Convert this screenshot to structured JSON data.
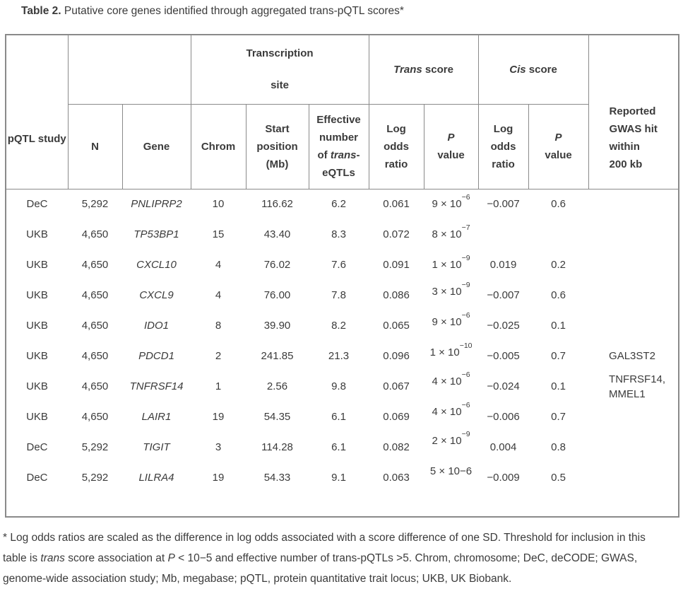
{
  "caption": {
    "label": "Table 2.",
    "text": " Putative core genes identified through aggregated trans-pQTL scores*"
  },
  "table": {
    "groups": {
      "transcription_site": [
        "Transcription",
        "site"
      ],
      "trans_score_italic": "Trans",
      "trans_score_rest": " score",
      "cis_score_italic": "Cis",
      "cis_score_rest": " score"
    },
    "columns": {
      "pqtl_study": "pQTL study",
      "n": "N",
      "gene": "Gene",
      "chrom": "Chrom",
      "start_position": [
        "Start",
        "position",
        "(Mb)"
      ],
      "effective": {
        "top": [
          "Effective",
          "number"
        ],
        "of": "of ",
        "trans": "trans",
        "hyphen": "-",
        "bottom": "eQTLs"
      },
      "trans_log_odds": [
        "Log",
        "odds",
        "ratio"
      ],
      "trans_p_italic": "P",
      "trans_p_rest": "value",
      "cis_log_odds": [
        "Log",
        "odds",
        "ratio"
      ],
      "cis_p_italic": "P",
      "cis_p_rest": "value",
      "gwas": [
        "Reported",
        "GWAS hit",
        "within",
        "200 kb"
      ]
    },
    "rows": [
      {
        "study": "DeC",
        "n": "5,292",
        "gene": "PNLIPRP2",
        "chrom": "10",
        "start": "116.62",
        "eff": "6.2",
        "trans_lor": "0.061",
        "trans_p_base": "9 × 10",
        "trans_p_sup": "−6",
        "cis_lor": "−0.007",
        "cis_p": "0.6",
        "gwas": ""
      },
      {
        "study": "UKB",
        "n": "4,650",
        "gene": "TP53BP1",
        "chrom": "15",
        "start": "43.40",
        "eff": "8.3",
        "trans_lor": "0.072",
        "trans_p_base": "8 × 10",
        "trans_p_sup": "−7",
        "cis_lor": "",
        "cis_p": "",
        "gwas": ""
      },
      {
        "study": "UKB",
        "n": "4,650",
        "gene": "CXCL10",
        "chrom": "4",
        "start": "76.02",
        "eff": "7.6",
        "trans_lor": "0.091",
        "trans_p_base": "1 × 10",
        "trans_p_sup": "−9",
        "cis_lor": "0.019",
        "cis_p": "0.2",
        "gwas": ""
      },
      {
        "study": "UKB",
        "n": "4,650",
        "gene": "CXCL9",
        "chrom": "4",
        "start": "76.00",
        "eff": "7.8",
        "trans_lor": "0.086",
        "trans_p_base": "3 × 10",
        "trans_p_sup": "−9",
        "cis_lor": "−0.007",
        "cis_p": "0.6",
        "gwas": ""
      },
      {
        "study": "UKB",
        "n": "4,650",
        "gene": "IDO1",
        "chrom": "8",
        "start": "39.90",
        "eff": "8.2",
        "trans_lor": "0.065",
        "trans_p_base": "9 × 10",
        "trans_p_sup": "−6",
        "cis_lor": "−0.025",
        "cis_p": "0.1",
        "gwas": ""
      },
      {
        "study": "UKB",
        "n": "4,650",
        "gene": "PDCD1",
        "chrom": "2",
        "start": "241.85",
        "eff": "21.3",
        "trans_lor": "0.096",
        "trans_p_base": "1 × 10",
        "trans_p_sup": "−10",
        "cis_lor": "−0.005",
        "cis_p": "0.7",
        "gwas": "GAL3ST2"
      },
      {
        "study": "UKB",
        "n": "4,650",
        "gene": "TNFRSF14",
        "chrom": "1",
        "start": "2.56",
        "eff": "9.8",
        "trans_lor": "0.067",
        "trans_p_base": "4 × 10",
        "trans_p_sup": "−6",
        "cis_lor": "−0.024",
        "cis_p": "0.1",
        "gwas": [
          "TNFRSF14,",
          "MMEL1"
        ]
      },
      {
        "study": "UKB",
        "n": "4,650",
        "gene": "LAIR1",
        "chrom": "19",
        "start": "54.35",
        "eff": "6.1",
        "trans_lor": "0.069",
        "trans_p_base": "4 × 10",
        "trans_p_sup": "−6",
        "cis_lor": "−0.006",
        "cis_p": "0.7",
        "gwas": ""
      },
      {
        "study": "DeC",
        "n": "5,292",
        "gene": "TIGIT",
        "chrom": "3",
        "start": "114.28",
        "eff": "6.1",
        "trans_lor": "0.082",
        "trans_p_base": "2 × 10",
        "trans_p_sup": "−9",
        "cis_lor": "0.004",
        "cis_p": "0.8",
        "gwas": ""
      },
      {
        "study": "DeC",
        "n": "5,292",
        "gene": "LILRA4",
        "chrom": "19",
        "start": "54.33",
        "eff": "9.1",
        "trans_lor": "0.063",
        "trans_p_base": "5 × 10−6",
        "trans_p_sup": "",
        "cis_lor": "−0.009",
        "cis_p": "0.5",
        "gwas": ""
      }
    ]
  },
  "footnote": {
    "line1": "* Log odds ratios are scaled as the difference in log odds associated with a score difference of one SD. Threshold for inclusion in this",
    "line2_parts": [
      "table is ",
      "trans",
      " score association at ",
      "P",
      " < 10−5 and effective number of trans-pQTLs >5. Chrom, chromosome; DeC, deCODE; GWAS,"
    ],
    "line3": "genome-wide association study; Mb, megabase; pQTL, protein quantitative trait locus; UKB, UK Biobank."
  },
  "colors": {
    "text": "#3b3b3b",
    "border": "#8a8a8a",
    "background": "#ffffff"
  }
}
